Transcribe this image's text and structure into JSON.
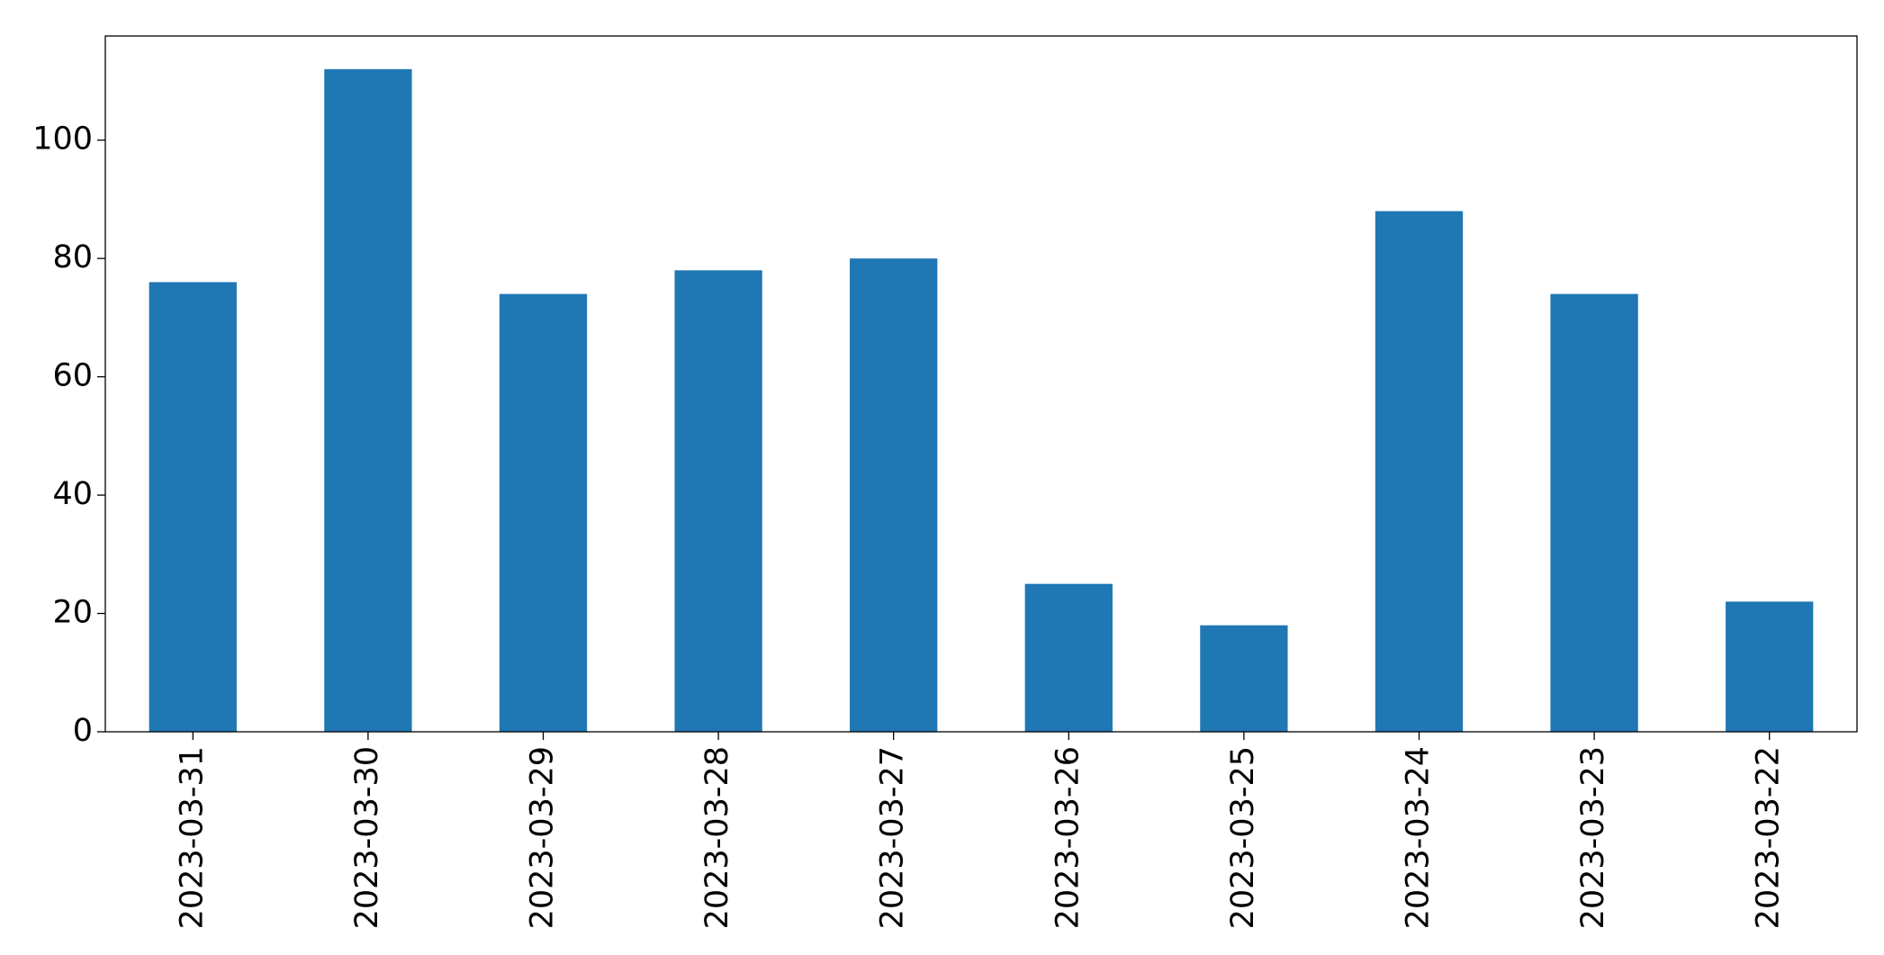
{
  "chart_data": {
    "type": "bar",
    "categories": [
      "2023-03-31",
      "2023-03-30",
      "2023-03-29",
      "2023-03-28",
      "2023-03-27",
      "2023-03-26",
      "2023-03-25",
      "2023-03-24",
      "2023-03-23",
      "2023-03-22"
    ],
    "values": [
      76,
      112,
      74,
      78,
      80,
      25,
      18,
      88,
      74,
      22
    ],
    "color": "#1f77b4",
    "ylim": [
      0,
      117.6
    ],
    "yticks": [
      0,
      20,
      40,
      60,
      80,
      100
    ],
    "grid": false
  }
}
